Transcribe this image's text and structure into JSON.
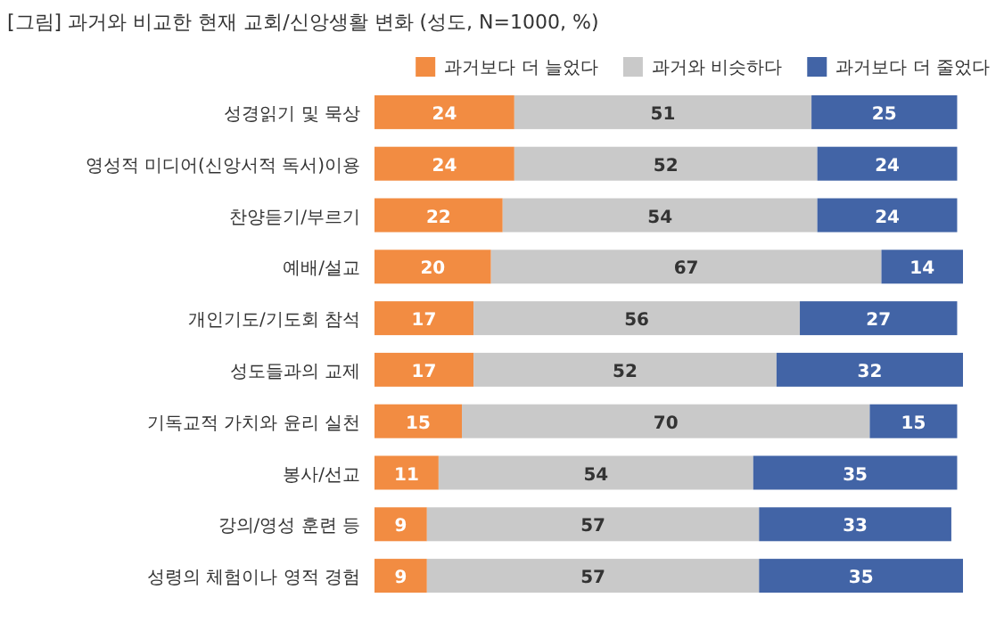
{
  "chart_data": {
    "type": "bar",
    "orientation": "horizontal",
    "stacked": true,
    "data_labels": true,
    "legend": "top right",
    "title": "[그림] 과거와 비교한 현재 교회/신앙생활 변화 (성도, N=1000, %)",
    "categories": [
      "성경읽기 및 묵상",
      "영성적 미디어(신앙서적 독서)이용",
      "찬양듣기/부르기",
      "예배/설교",
      "개인기도/기도회 참석",
      "성도들과의 교제",
      "기독교적 가치와 윤리 실천",
      "봉사/선교",
      "강의/영성 훈련 등",
      "성령의 체험이나 영적 경험"
    ],
    "series": [
      {
        "name": "과거보다 더 늘었다",
        "color": "#f28c42",
        "values": [
          24,
          24,
          22,
          20,
          17,
          17,
          15,
          11,
          9,
          9
        ]
      },
      {
        "name": "과거와 비슷하다",
        "color": "#c9c9c9",
        "values": [
          51,
          52,
          54,
          67,
          56,
          52,
          70,
          54,
          57,
          57
        ]
      },
      {
        "name": "과거보다 더 줄었다",
        "color": "#4264a6",
        "values": [
          25,
          24,
          24,
          14,
          27,
          32,
          15,
          35,
          33,
          35
        ]
      }
    ]
  }
}
